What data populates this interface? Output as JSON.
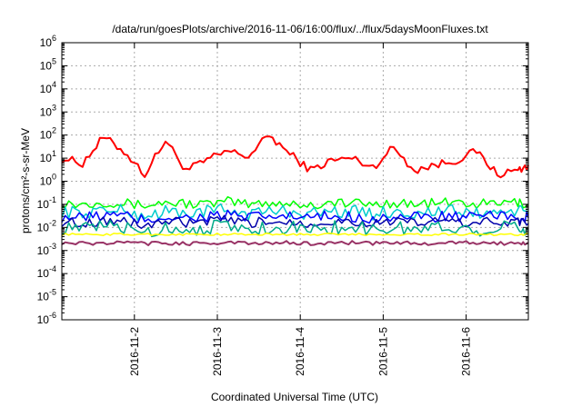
{
  "chart_data": {
    "type": "line",
    "title": "/data/run/goesPlots/archive/2016-11-06/16:00/flux/../flux/5daysMoonFluxes.txt",
    "xlabel": "Coordinated Universal Time (UTC)",
    "ylabel": "protons/cm²-s-sr-MeV",
    "yscale": "log",
    "ylim_exponents": [
      -6,
      6
    ],
    "y_base": "10",
    "xlim": [
      "2016-11-01 03:00",
      "2016-11-06 18:00"
    ],
    "x_ticks": [
      "2016-11-2",
      "2016-11-3",
      "2016-11-4",
      "2016-11-5",
      "2016-11-6"
    ],
    "x_tick_dates": [
      "2016-11-02 00:00",
      "2016-11-03 00:00",
      "2016-11-04 00:00",
      "2016-11-05 00:00",
      "2016-11-06 00:00"
    ],
    "grid": true,
    "legend": "none",
    "x_times": [
      "2016-11-01 03:00",
      "2016-11-01 09:00",
      "2016-11-01 15:00",
      "2016-11-01 21:00",
      "2016-11-02 03:00",
      "2016-11-02 09:00",
      "2016-11-02 15:00",
      "2016-11-02 21:00",
      "2016-11-03 03:00",
      "2016-11-03 09:00",
      "2016-11-03 15:00",
      "2016-11-03 21:00",
      "2016-11-04 03:00",
      "2016-11-04 09:00",
      "2016-11-04 15:00",
      "2016-11-04 21:00",
      "2016-11-05 03:00",
      "2016-11-05 09:00",
      "2016-11-05 15:00",
      "2016-11-05 21:00",
      "2016-11-06 03:00",
      "2016-11-06 09:00",
      "2016-11-06 15:00",
      "2016-11-06 18:00"
    ],
    "series": [
      {
        "color": "#ff0000",
        "width": 2,
        "noise": 0.18,
        "values": [
          10,
          6,
          80,
          20,
          2,
          60,
          3,
          8,
          20,
          12,
          100,
          15,
          3,
          8,
          10,
          4,
          30,
          3,
          5,
          8,
          20,
          2,
          3,
          5
        ]
      },
      {
        "color": "#00ff00",
        "width": 1.5,
        "noise": 0.22,
        "values": [
          0.12,
          0.1,
          0.13,
          0.11,
          0.09,
          0.12,
          0.11,
          0.1,
          0.13,
          0.1,
          0.12,
          0.11,
          0.09,
          0.12,
          0.11,
          0.1,
          0.12,
          0.1,
          0.11,
          0.12,
          0.1,
          0.11,
          0.12,
          0.1
        ]
      },
      {
        "color": "#00cccc",
        "width": 1.5,
        "noise": 0.28,
        "values": [
          0.05,
          0.04,
          0.06,
          0.05,
          0.03,
          0.05,
          0.04,
          0.05,
          0.06,
          0.04,
          0.05,
          0.05,
          0.04,
          0.05,
          0.05,
          0.04,
          0.05,
          0.04,
          0.05,
          0.05,
          0.04,
          0.05,
          0.05,
          0.04
        ]
      },
      {
        "color": "#0000ff",
        "width": 1.5,
        "noise": 0.26,
        "values": [
          0.03,
          0.025,
          0.035,
          0.03,
          0.02,
          0.03,
          0.025,
          0.03,
          0.035,
          0.025,
          0.03,
          0.03,
          0.025,
          0.03,
          0.03,
          0.025,
          0.03,
          0.025,
          0.03,
          0.03,
          0.025,
          0.03,
          0.03,
          0.025
        ]
      },
      {
        "color": "#0000aa",
        "width": 1.5,
        "noise": 0.22,
        "values": [
          0.018,
          0.015,
          0.02,
          0.018,
          0.012,
          0.018,
          0.015,
          0.018,
          0.02,
          0.015,
          0.018,
          0.018,
          0.015,
          0.018,
          0.018,
          0.015,
          0.018,
          0.015,
          0.018,
          0.018,
          0.015,
          0.018,
          0.018,
          0.015
        ]
      },
      {
        "color": "#00aa88",
        "width": 1.5,
        "noise": 0.3,
        "values": [
          0.01,
          0.008,
          0.012,
          0.01,
          0.006,
          0.01,
          0.008,
          0.01,
          0.012,
          0.008,
          0.01,
          0.01,
          0.008,
          0.01,
          0.01,
          0.008,
          0.01,
          0.008,
          0.01,
          0.01,
          0.008,
          0.01,
          0.01,
          0.008
        ]
      },
      {
        "color": "#ffff00",
        "width": 1.5,
        "noise": 0.05,
        "values": [
          0.005,
          0.005,
          0.005,
          0.005,
          0.005,
          0.005,
          0.005,
          0.005,
          0.005,
          0.005,
          0.005,
          0.005,
          0.005,
          0.005,
          0.005,
          0.005,
          0.005,
          0.005,
          0.005,
          0.005,
          0.005,
          0.005,
          0.005,
          0.005
        ]
      },
      {
        "color": "#993366",
        "width": 2,
        "noise": 0.08,
        "values": [
          0.0022,
          0.002,
          0.0021,
          0.0022,
          0.002,
          0.0021,
          0.002,
          0.0021,
          0.0022,
          0.002,
          0.0021,
          0.0022,
          0.002,
          0.0021,
          0.0022,
          0.002,
          0.0021,
          0.0022,
          0.002,
          0.0021,
          0.0022,
          0.002,
          0.0021,
          0.0022
        ]
      }
    ]
  }
}
